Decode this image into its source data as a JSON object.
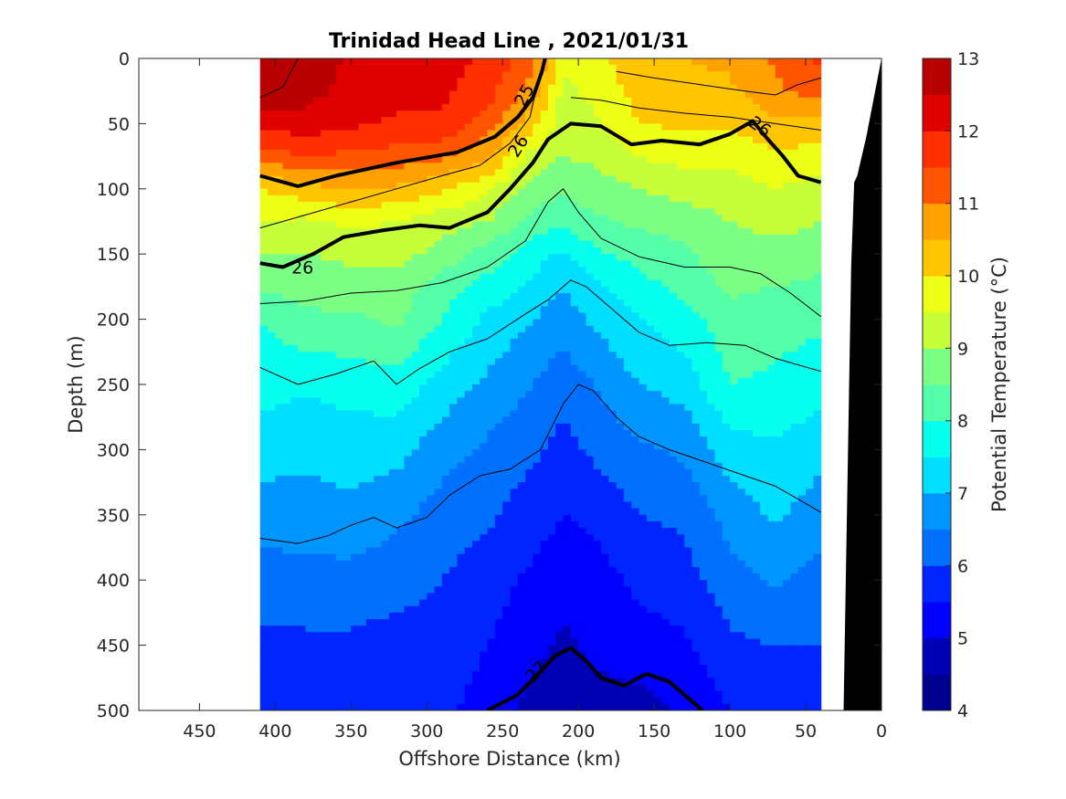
{
  "chart_data": {
    "type": "contour",
    "title": "Trinidad Head Line , 2021/01/31",
    "xlabel": "Offshore Distance (km)",
    "ylabel": "Depth (m)",
    "xlim": [
      490,
      0
    ],
    "ylim": [
      0,
      500
    ],
    "xticks": [
      "450",
      "400",
      "350",
      "300",
      "250",
      "200",
      "150",
      "100",
      "50",
      "0"
    ],
    "yticks": [
      "0",
      "50",
      "100",
      "150",
      "200",
      "250",
      "300",
      "350",
      "400",
      "450",
      "500"
    ],
    "data_extent_km": [
      410,
      40
    ],
    "colorbar": {
      "label": "Potential Temperature (°C)",
      "ticks": [
        "4",
        "5",
        "6",
        "7",
        "8",
        "9",
        "10",
        "11",
        "12",
        "13"
      ],
      "levels": [
        4,
        4.5,
        5,
        5.5,
        6,
        6.5,
        7,
        7.5,
        8,
        8.5,
        9,
        9.5,
        10,
        10.5,
        11,
        11.5,
        12,
        12.5,
        13
      ],
      "colors": [
        "#00008f",
        "#0000b5",
        "#0000db",
        "#0000ff",
        "#0025ff",
        "#004bff",
        "#0070ff",
        "#0095ff",
        "#00baff",
        "#00dfff",
        "#07ffed",
        "#2cffca",
        "#55ffaa",
        "#7bff84",
        "#a0ff5f",
        "#c6ff39",
        "#edff14",
        "#ffec00",
        "#ffc600",
        "#ffa100",
        "#ff7a00",
        "#ff5500",
        "#ff2f00",
        "#ff0a00",
        "#e10000",
        "#b80000"
      ]
    },
    "temperature_profiles": {
      "x_km": [
        410,
        380,
        350,
        320,
        290,
        260,
        230,
        210,
        190,
        160,
        130,
        100,
        70,
        40
      ],
      "depth_m": [
        0,
        25,
        50,
        75,
        100,
        125,
        150,
        175,
        200,
        250,
        300,
        350,
        400,
        450,
        500
      ],
      "theta_c": [
        [
          12.8,
          12.8,
          12.2,
          11.2,
          10.0,
          9.5,
          9.0,
          8.6,
          8.0,
          7.7,
          7.2,
          6.8,
          6.2,
          5.9,
          5.7
        ],
        [
          12.9,
          12.7,
          12.3,
          11.5,
          10.3,
          9.4,
          9.0,
          8.7,
          8.4,
          7.6,
          7.1,
          6.8,
          6.3,
          5.9,
          5.7
        ],
        [
          12.4,
          12.3,
          12.1,
          11.4,
          10.6,
          9.6,
          9.1,
          8.8,
          8.4,
          7.7,
          7.2,
          6.9,
          6.3,
          5.9,
          5.7
        ],
        [
          12.3,
          12.2,
          11.9,
          11.3,
          10.4,
          9.5,
          9.2,
          8.8,
          8.6,
          7.8,
          7.2,
          6.6,
          6.2,
          5.8,
          5.7
        ],
        [
          12.2,
          12.1,
          11.9,
          11.1,
          10.1,
          9.2,
          8.8,
          8.2,
          8.0,
          7.3,
          6.7,
          6.3,
          6.0,
          5.8,
          5.6
        ],
        [
          11.9,
          11.7,
          11.3,
          10.6,
          9.6,
          9.0,
          8.3,
          7.8,
          7.4,
          6.9,
          6.4,
          6.1,
          5.7,
          5.5,
          5.3
        ],
        [
          11.2,
          10.8,
          10.2,
          9.3,
          8.8,
          8.3,
          7.7,
          7.4,
          7.0,
          6.5,
          6.1,
          5.7,
          5.4,
          5.2,
          4.8
        ],
        [
          9.6,
          9.4,
          9.2,
          9.0,
          8.6,
          8.1,
          7.4,
          7.0,
          6.7,
          6.2,
          5.8,
          5.5,
          5.2,
          4.9,
          4.6
        ],
        [
          9.8,
          9.6,
          9.4,
          9.1,
          8.8,
          8.4,
          7.9,
          7.4,
          7.1,
          6.5,
          6.1,
          5.6,
          5.3,
          5.1,
          4.8
        ],
        [
          10.4,
          10.2,
          10.0,
          9.5,
          9.0,
          8.6,
          8.2,
          7.8,
          7.5,
          7.0,
          6.4,
          6.0,
          5.6,
          5.3,
          4.8
        ],
        [
          10.5,
          10.4,
          10.1,
          9.7,
          9.2,
          8.7,
          8.4,
          8.2,
          7.8,
          7.2,
          6.6,
          6.1,
          5.8,
          5.4,
          5.1
        ],
        [
          10.6,
          10.4,
          10.1,
          9.6,
          9.3,
          9.0,
          8.8,
          8.6,
          8.3,
          8.0,
          7.3,
          6.7,
          6.3,
          5.9,
          5.5
        ],
        [
          11.1,
          10.9,
          10.4,
          9.9,
          9.5,
          9.2,
          8.8,
          8.5,
          8.2,
          7.9,
          7.4,
          7.1,
          6.6,
          6.0,
          5.6
        ],
        [
          11.6,
          11.2,
          10.3,
          9.8,
          9.3,
          9.0,
          8.7,
          8.4,
          8.1,
          7.7,
          7.2,
          6.7,
          6.3,
          6.0,
          5.7
        ]
      ]
    },
    "isopycnals": [
      {
        "points": [
          [
            410,
            90
          ],
          [
            385,
            98
          ],
          [
            360,
            90
          ],
          [
            320,
            80
          ],
          [
            280,
            72
          ],
          [
            255,
            60
          ],
          [
            240,
            45
          ],
          [
            230,
            30
          ],
          [
            224,
            10
          ],
          [
            222,
            0
          ]
        ],
        "bold": true,
        "label": "25"
      },
      {
        "points": [
          [
            410,
            157
          ],
          [
            395,
            160
          ],
          [
            375,
            150
          ],
          [
            355,
            137
          ],
          [
            330,
            132
          ],
          [
            305,
            128
          ],
          [
            285,
            130
          ],
          [
            260,
            118
          ],
          [
            245,
            100
          ],
          [
            230,
            80
          ],
          [
            220,
            62
          ],
          [
            205,
            50
          ],
          [
            185,
            52
          ],
          [
            165,
            66
          ],
          [
            145,
            63
          ],
          [
            120,
            66
          ],
          [
            100,
            58
          ],
          [
            85,
            48
          ],
          [
            75,
            62
          ],
          [
            65,
            75
          ],
          [
            55,
            90
          ],
          [
            40,
            95
          ]
        ],
        "bold": true,
        "label": "26"
      },
      {
        "points": [
          [
            260,
            500
          ],
          [
            240,
            488
          ],
          [
            225,
            470
          ],
          [
            215,
            458
          ],
          [
            205,
            452
          ],
          [
            195,
            462
          ],
          [
            185,
            475
          ],
          [
            170,
            481
          ],
          [
            155,
            472
          ],
          [
            140,
            478
          ],
          [
            125,
            493
          ],
          [
            118,
            500
          ]
        ],
        "bold": true,
        "label": "27"
      },
      {
        "points": [
          [
            410,
            188
          ],
          [
            380,
            186
          ],
          [
            350,
            180
          ],
          [
            320,
            178
          ],
          [
            290,
            172
          ],
          [
            260,
            160
          ],
          [
            235,
            140
          ],
          [
            220,
            110
          ],
          [
            210,
            100
          ],
          [
            200,
            118
          ],
          [
            185,
            138
          ],
          [
            160,
            152
          ],
          [
            130,
            160
          ],
          [
            100,
            160
          ],
          [
            80,
            165
          ],
          [
            60,
            180
          ],
          [
            40,
            198
          ]
        ],
        "bold": false
      },
      {
        "points": [
          [
            410,
            237
          ],
          [
            385,
            250
          ],
          [
            360,
            242
          ],
          [
            335,
            232
          ],
          [
            320,
            250
          ],
          [
            305,
            238
          ],
          [
            285,
            225
          ],
          [
            260,
            215
          ],
          [
            235,
            196
          ],
          [
            220,
            185
          ],
          [
            205,
            170
          ],
          [
            195,
            175
          ],
          [
            180,
            190
          ],
          [
            160,
            210
          ],
          [
            140,
            220
          ],
          [
            115,
            218
          ],
          [
            90,
            220
          ],
          [
            70,
            230
          ],
          [
            40,
            240
          ]
        ],
        "bold": false
      },
      {
        "points": [
          [
            410,
            368
          ],
          [
            385,
            372
          ],
          [
            365,
            366
          ],
          [
            350,
            358
          ],
          [
            335,
            352
          ],
          [
            320,
            360
          ],
          [
            300,
            352
          ],
          [
            285,
            335
          ],
          [
            265,
            320
          ],
          [
            245,
            315
          ],
          [
            225,
            300
          ],
          [
            210,
            265
          ],
          [
            200,
            250
          ],
          [
            190,
            255
          ],
          [
            175,
            275
          ],
          [
            160,
            290
          ],
          [
            140,
            300
          ],
          [
            120,
            308
          ],
          [
            95,
            318
          ],
          [
            70,
            328
          ],
          [
            40,
            348
          ]
        ],
        "bold": false
      },
      {
        "points": [
          [
            410,
            30
          ],
          [
            395,
            22
          ],
          [
            385,
            0
          ]
        ],
        "bold": false
      },
      {
        "points": [
          [
            410,
            130
          ],
          [
            380,
            120
          ],
          [
            350,
            110
          ],
          [
            320,
            100
          ],
          [
            290,
            90
          ],
          [
            265,
            82
          ],
          [
            245,
            65
          ],
          [
            232,
            45
          ],
          [
            228,
            25
          ]
        ],
        "bold": false
      },
      {
        "points": [
          [
            205,
            30
          ],
          [
            185,
            32
          ],
          [
            160,
            38
          ],
          [
            130,
            42
          ],
          [
            100,
            45
          ],
          [
            70,
            50
          ],
          [
            40,
            55
          ]
        ],
        "bold": false
      },
      {
        "points": [
          [
            175,
            10
          ],
          [
            150,
            15
          ],
          [
            120,
            20
          ],
          [
            90,
            25
          ],
          [
            70,
            28
          ],
          [
            55,
            20
          ],
          [
            40,
            15
          ]
        ],
        "bold": false
      }
    ],
    "bathymetry_km_depth": [
      [
        25,
        500
      ],
      [
        0,
        500
      ],
      [
        0,
        0
      ],
      [
        10,
        60
      ],
      [
        16,
        90
      ],
      [
        18,
        95
      ],
      [
        20,
        160
      ],
      [
        25,
        500
      ]
    ]
  }
}
